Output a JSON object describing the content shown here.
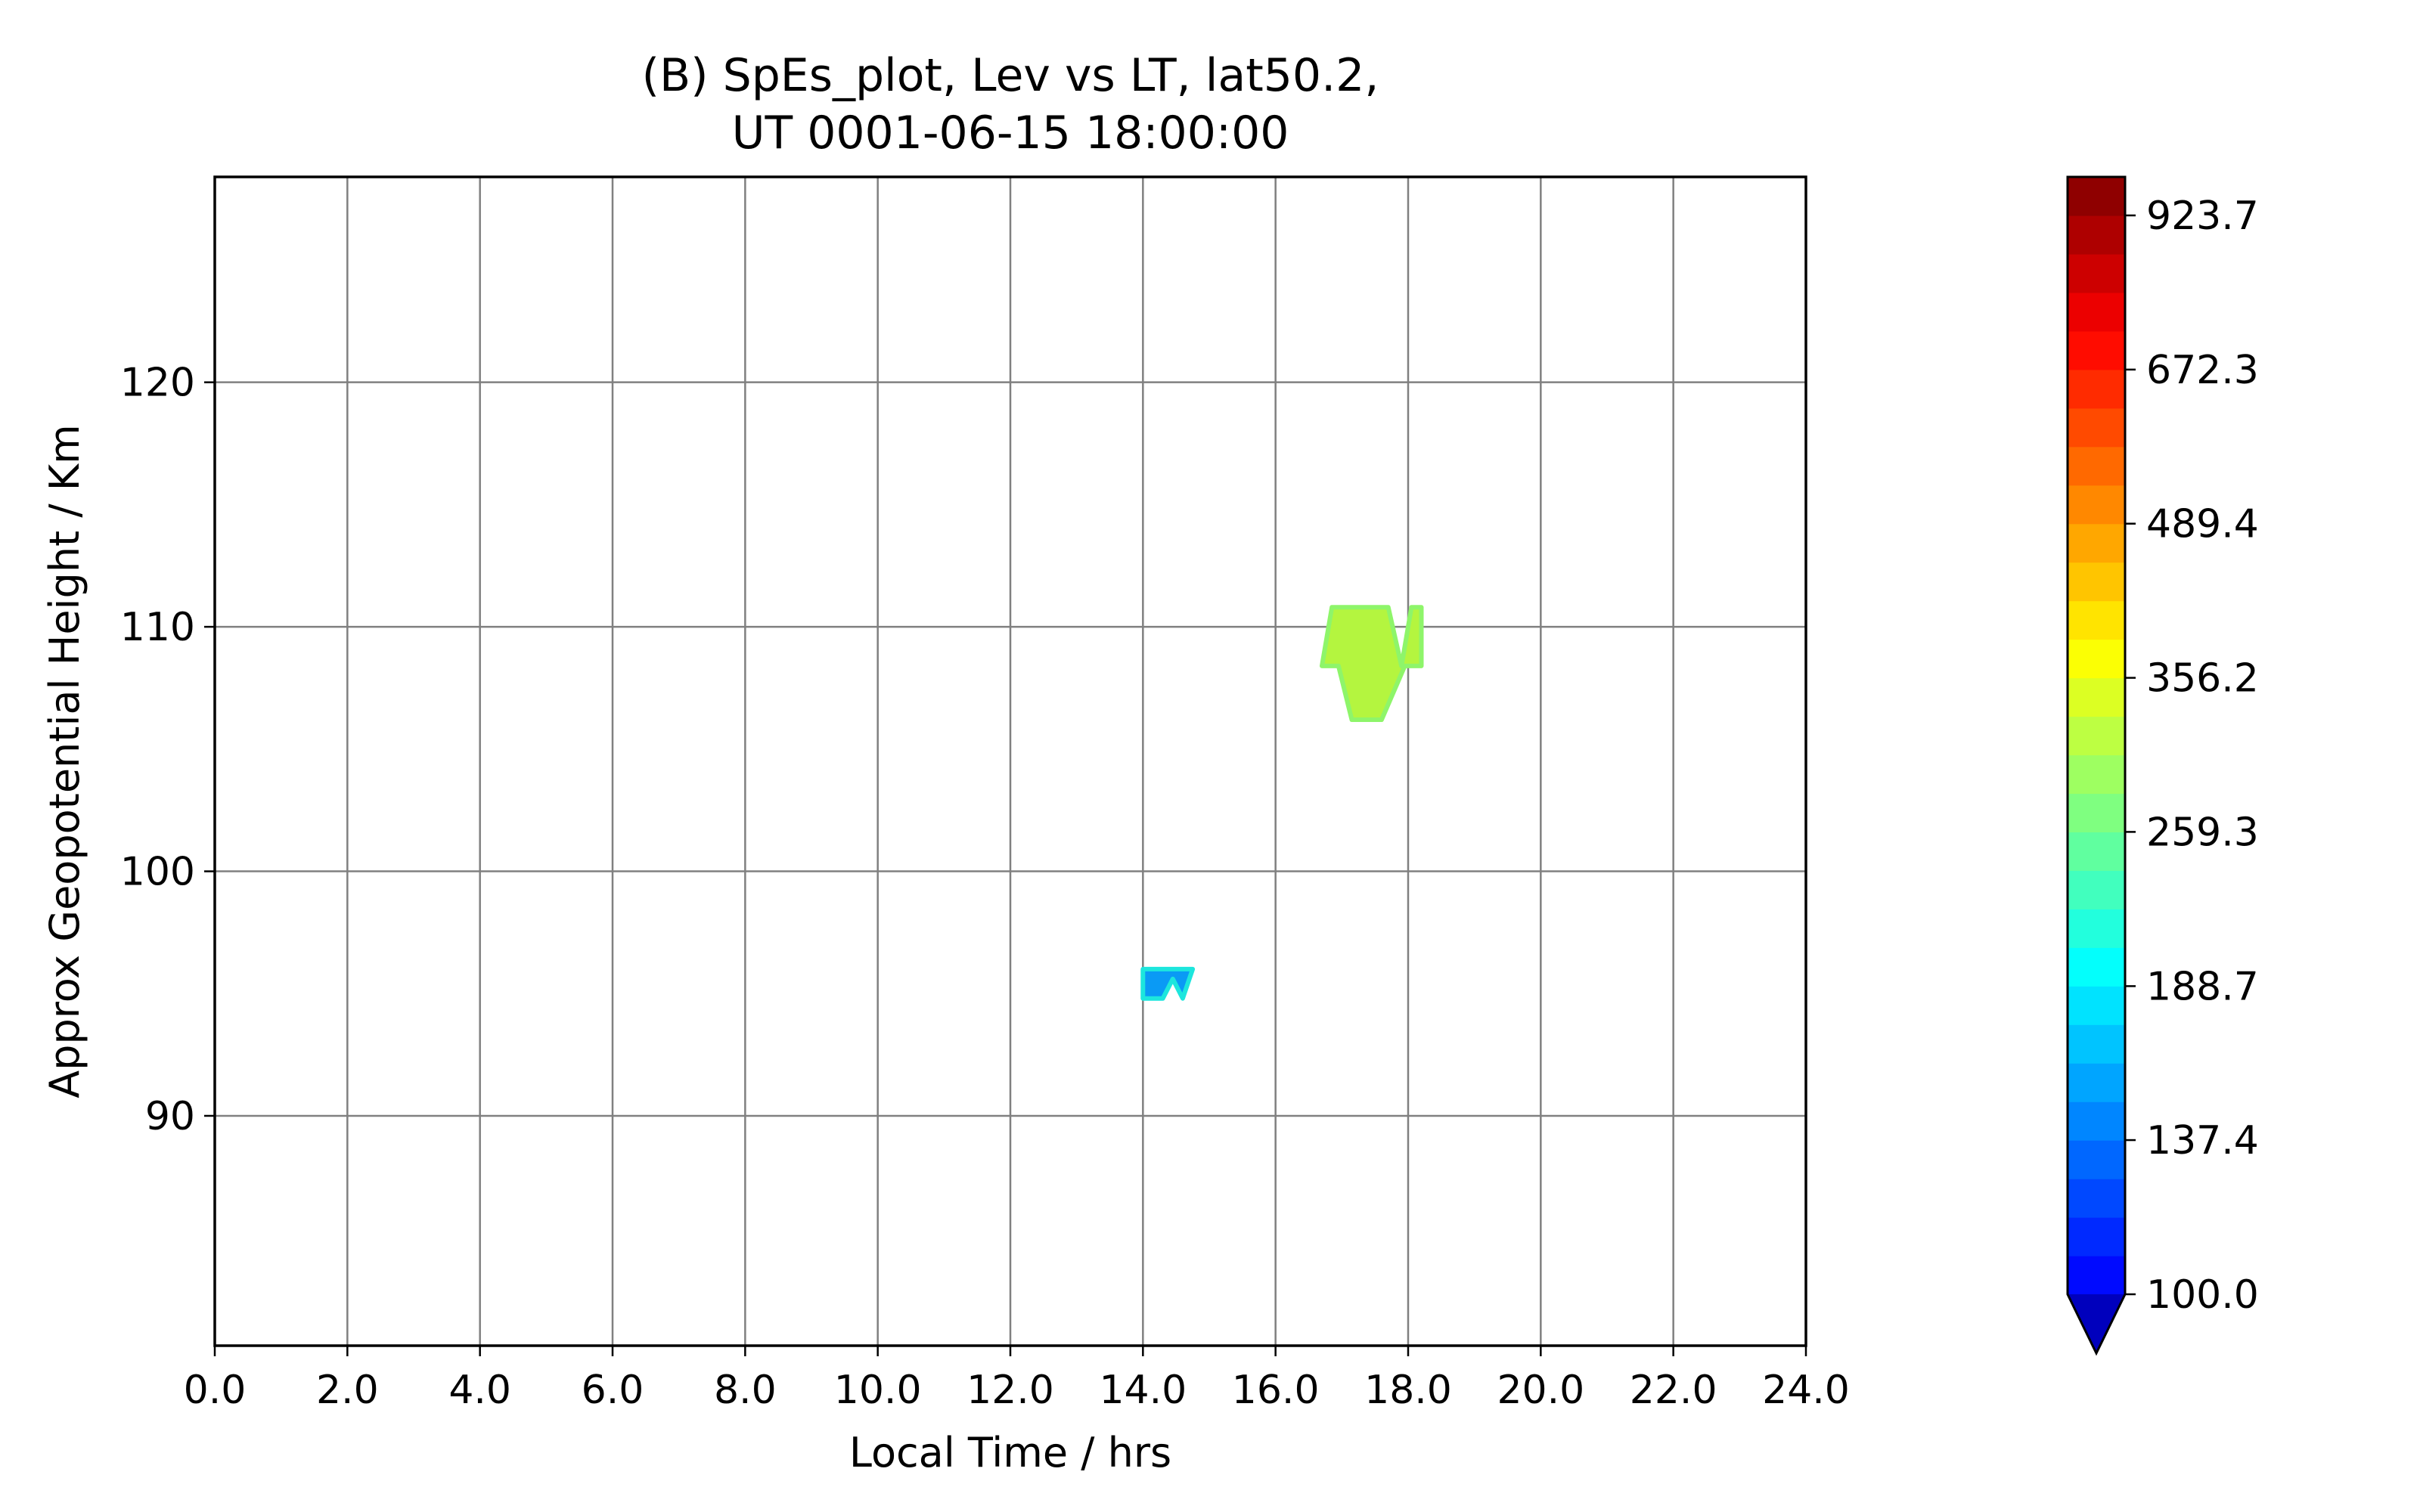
{
  "chart_data": {
    "type": "heatmap",
    "title_line1": "(B) SpEs_plot, Lev vs LT, lat50.2,",
    "title_line2": "UT 0001-06-15 18:00:00",
    "xlabel": "Local Time / hrs",
    "ylabel": "Approx Geopotential Height / Km",
    "xlim": [
      0,
      24
    ],
    "ylim": [
      80.6,
      128.4
    ],
    "x_ticks": [
      "0.0",
      "2.0",
      "4.0",
      "6.0",
      "8.0",
      "10.0",
      "12.0",
      "14.0",
      "16.0",
      "18.0",
      "20.0",
      "22.0",
      "24.0"
    ],
    "x_tick_values": [
      0,
      2,
      4,
      6,
      8,
      10,
      12,
      14,
      16,
      18,
      20,
      22,
      24
    ],
    "y_ticks": [
      "90",
      "100",
      "110",
      "120"
    ],
    "y_tick_values": [
      90,
      100,
      110,
      120
    ],
    "grid": true,
    "colormap": "jet",
    "colorbar": {
      "min": 100.0,
      "max": 1000.0,
      "levels": 29,
      "extend": "min",
      "tick_labels": [
        "100.0",
        "137.4",
        "188.7",
        "259.3",
        "356.2",
        "489.4",
        "672.3",
        "923.7"
      ],
      "tick_values": [
        100.0,
        137.4,
        188.7,
        259.3,
        356.2,
        489.4,
        672.3,
        923.7
      ]
    },
    "regions": [
      {
        "name": "patch-17lt",
        "value": 380,
        "color": "#b4f53f",
        "edge_color": "#8ef56a",
        "polygon": [
          [
            16.7,
            108.4
          ],
          [
            16.85,
            110.8
          ],
          [
            17.7,
            110.8
          ],
          [
            17.9,
            108.4
          ],
          [
            18.05,
            110.8
          ],
          [
            18.2,
            110.8
          ],
          [
            18.2,
            108.4
          ],
          [
            17.95,
            108.4
          ],
          [
            17.6,
            106.2
          ],
          [
            17.15,
            106.2
          ],
          [
            16.95,
            108.4
          ]
        ]
      },
      {
        "name": "patch-14lt",
        "value": 180,
        "color": "#0a9af5",
        "edge_color": "#1de6dd",
        "polygon": [
          [
            14.0,
            94.8
          ],
          [
            14.0,
            96.0
          ],
          [
            14.75,
            96.0
          ],
          [
            14.6,
            94.8
          ],
          [
            14.45,
            95.6
          ],
          [
            14.3,
            94.8
          ]
        ]
      }
    ]
  }
}
